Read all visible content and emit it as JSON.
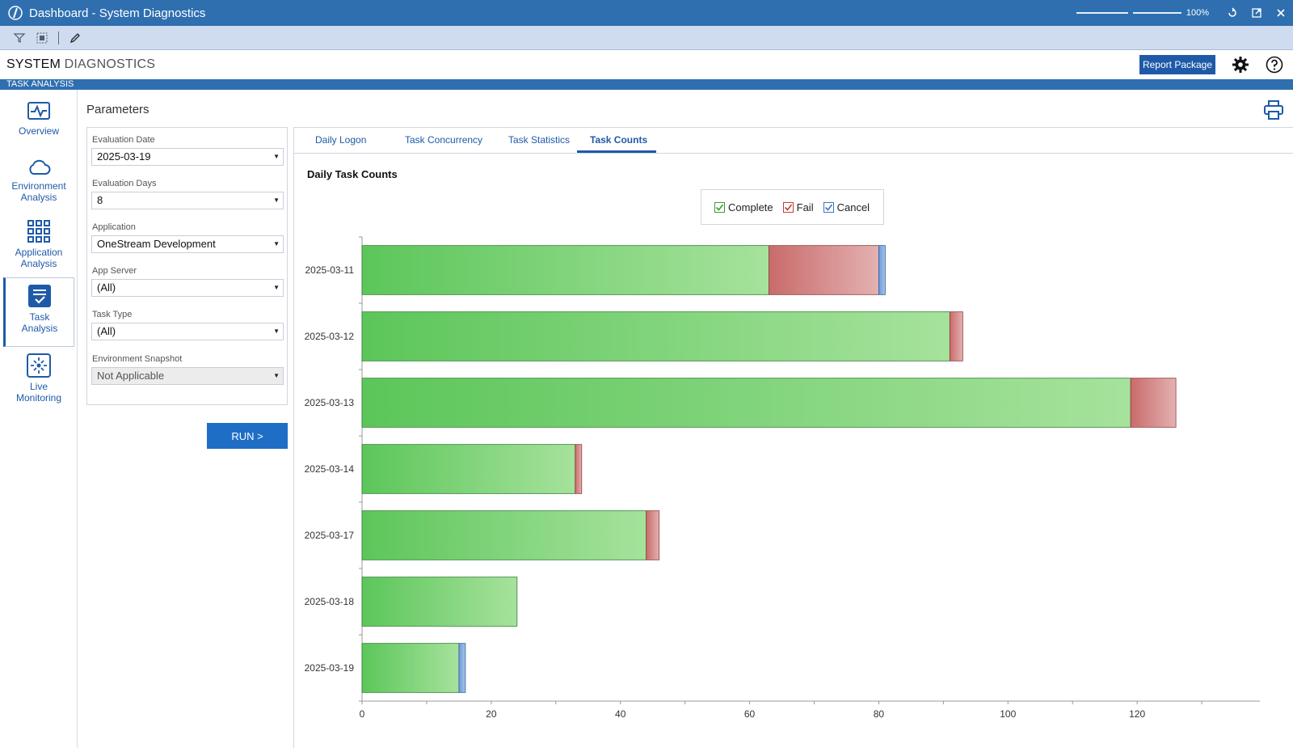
{
  "window": {
    "title": "Dashboard - System Diagnostics",
    "zoom": "100%"
  },
  "header": {
    "title_part1": "SYSTEM",
    "title_part2": "DIAGNOSTICS",
    "report_button": "Report Package"
  },
  "section_bar": "TASK ANALYSIS",
  "nav": [
    {
      "label1": "Overview",
      "label2": ""
    },
    {
      "label1": "Environment",
      "label2": "Analysis"
    },
    {
      "label1": "Application",
      "label2": "Analysis"
    },
    {
      "label1": "Task",
      "label2": "Analysis"
    },
    {
      "label1": "Live",
      "label2": "Monitoring"
    }
  ],
  "params": {
    "title": "Parameters",
    "evaluation_date": {
      "label": "Evaluation Date",
      "value": "2025-03-19"
    },
    "evaluation_days": {
      "label": "Evaluation Days",
      "value": "8"
    },
    "application": {
      "label": "Application",
      "value": "OneStream Development"
    },
    "app_server": {
      "label": "App Server",
      "value": "(All)"
    },
    "task_type": {
      "label": "Task Type",
      "value": "(All)"
    },
    "env_snapshot": {
      "label": "Environment Snapshot",
      "value": "Not Applicable"
    },
    "run_button": "RUN >"
  },
  "tabs": [
    {
      "label": "Daily Logon"
    },
    {
      "label": "Task Concurrency"
    },
    {
      "label": "Task Statistics"
    },
    {
      "label": "Task Counts"
    }
  ],
  "legend": {
    "complete": "Complete",
    "fail": "Fail",
    "cancel": "Cancel"
  },
  "colors": {
    "complete": "#5cc65a",
    "fail": "#c96b6b",
    "cancel": "#6d9ad6",
    "accent": "#1f5aa8",
    "titlebar": "#2f6fb0"
  },
  "chart_data": {
    "type": "bar",
    "orientation": "horizontal",
    "stacked": true,
    "title": "Daily Task Counts",
    "categories": [
      "2025-03-11",
      "2025-03-12",
      "2025-03-13",
      "2025-03-14",
      "2025-03-17",
      "2025-03-18",
      "2025-03-19"
    ],
    "series": [
      {
        "name": "Complete",
        "values": [
          63,
          91,
          119,
          33,
          44,
          24,
          15
        ]
      },
      {
        "name": "Fail",
        "values": [
          17,
          2,
          7,
          1,
          2,
          0,
          0
        ]
      },
      {
        "name": "Cancel",
        "values": [
          1,
          0,
          0,
          0,
          0,
          0,
          1
        ]
      }
    ],
    "xlim": [
      0,
      139
    ],
    "xticks": [
      0,
      20,
      40,
      60,
      80,
      100,
      120
    ],
    "legend_position": "top-center",
    "grid": false
  }
}
